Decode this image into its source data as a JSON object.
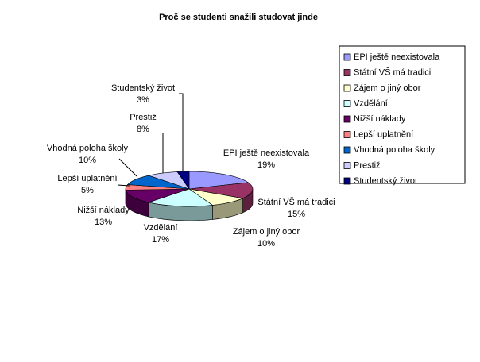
{
  "chart_data": {
    "type": "pie3d",
    "title": "Proč se studenti snažili studovat jinde",
    "categories": [
      "EPI ještě neexistovala",
      "Státní VŠ má tradici",
      "Zájem o jiný obor",
      "Vzdělání",
      "Nižší náklady",
      "Lepší uplatnění",
      "Vhodná poloha školy",
      "Prestiž",
      "Studentský život"
    ],
    "values": [
      19,
      15,
      10,
      17,
      13,
      5,
      10,
      8,
      3
    ],
    "value_labels": [
      "19%",
      "15%",
      "10%",
      "17%",
      "13%",
      "5%",
      "10%",
      "8%",
      "3%"
    ],
    "colors": [
      "#9999ff",
      "#993366",
      "#ffffcc",
      "#ccffff",
      "#660066",
      "#ff8080",
      "#0066cc",
      "#ccccff",
      "#000080"
    ],
    "legend": "right"
  }
}
